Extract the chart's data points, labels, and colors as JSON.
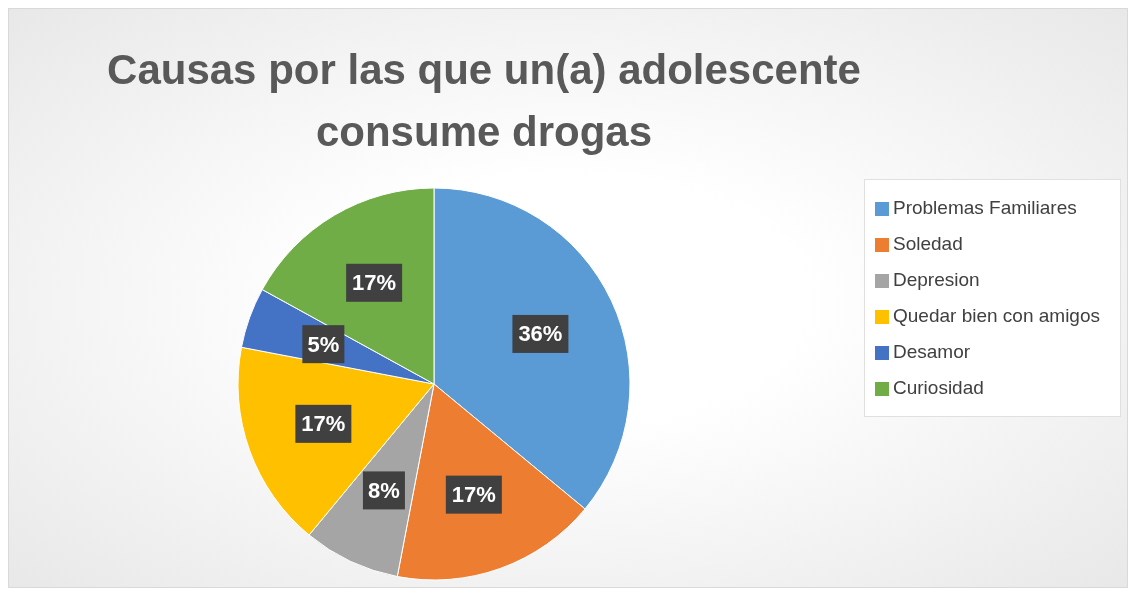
{
  "chart_data": {
    "type": "pie",
    "title": "Causas por las que un(a) adolescente consume drogas",
    "categories": [
      "Problemas Familiares",
      "Soledad",
      "Depresion",
      "Quedar bien con amigos",
      "Desamor",
      "Curiosidad"
    ],
    "values": [
      36,
      17,
      8,
      17,
      5,
      17
    ],
    "value_labels": [
      "36%",
      "17%",
      "8%",
      "17%",
      "5%",
      "17%"
    ],
    "colors": [
      "#5b9bd5",
      "#ed7d31",
      "#a5a5a5",
      "#ffc000",
      "#4472c4",
      "#70ad47"
    ],
    "legend": "right"
  }
}
